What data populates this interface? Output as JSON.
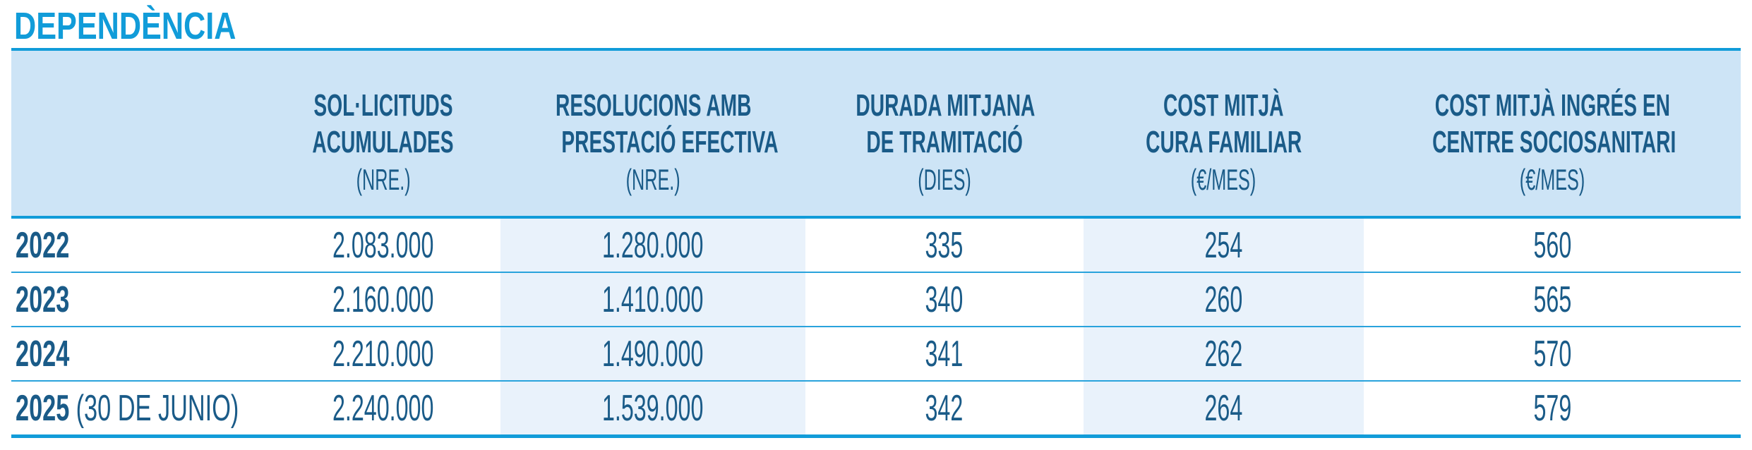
{
  "title": "DEPENDÈNCIA",
  "colors": {
    "title_accent": "#119cd9",
    "border_line": "#29a3dc",
    "header_background": "#cde4f6",
    "shaded_column_background": "#e9f2fb",
    "text_dark_blue": "#1a5b88"
  },
  "table": {
    "columns": [
      {
        "line1": "SOL·LICITUDS",
        "line2": "ACUMULADES",
        "unit": "(NRE.)"
      },
      {
        "line1": "RESOLUCIONS AMB",
        "line2": "PRESTACIÓ EFECTIVA",
        "unit": "(NRE.)"
      },
      {
        "line1": "DURADA MITJANA",
        "line2": "DE TRAMITACIÓ",
        "unit": "(DIES)"
      },
      {
        "line1": "COST MITJÀ",
        "line2": "CURA FAMILIAR",
        "unit": "(€/MES)"
      },
      {
        "line1": "COST MITJÀ INGRÉS EN",
        "line2": "CENTRE SOCIOSANITARI",
        "unit": "(€/MES)"
      }
    ],
    "rows": [
      {
        "label": "2022",
        "suffix": "",
        "values": [
          "2.083.000",
          "1.280.000",
          "335",
          "254",
          "560"
        ]
      },
      {
        "label": "2023",
        "suffix": "",
        "values": [
          "2.160.000",
          "1.410.000",
          "340",
          "260",
          "565"
        ]
      },
      {
        "label": "2024",
        "suffix": "",
        "values": [
          "2.210.000",
          "1.490.000",
          "341",
          "262",
          "570"
        ]
      },
      {
        "label": "2025",
        "suffix": "(30 DE JUNIO)",
        "values": [
          "2.240.000",
          "1.539.000",
          "342",
          "264",
          "579"
        ]
      }
    ]
  },
  "chart_data": {
    "type": "table",
    "title": "DEPENDÈNCIA",
    "columns": [
      "",
      "SOL·LICITUDS ACUMULADES (NRE.)",
      "RESOLUCIONS AMB PRESTACIÓ EFECTIVA (NRE.)",
      "DURADA MITJANA DE TRAMITACIÓ (DIES)",
      "COST MITJÀ CURA FAMILIAR (€/MES)",
      "COST MITJÀ INGRÉS EN CENTRE SOCIOSANITARI (€/MES)"
    ],
    "rows": [
      [
        "2022",
        2083000,
        1280000,
        335,
        254,
        560
      ],
      [
        "2023",
        2160000,
        1410000,
        340,
        260,
        565
      ],
      [
        "2024",
        2210000,
        1490000,
        341,
        262,
        570
      ],
      [
        "2025 (30 DE JUNIO)",
        2240000,
        1539000,
        342,
        264,
        579
      ]
    ],
    "notes": "Numbers shown with dot thousand separators; columns 2 and 4 shaded light blue in body"
  }
}
